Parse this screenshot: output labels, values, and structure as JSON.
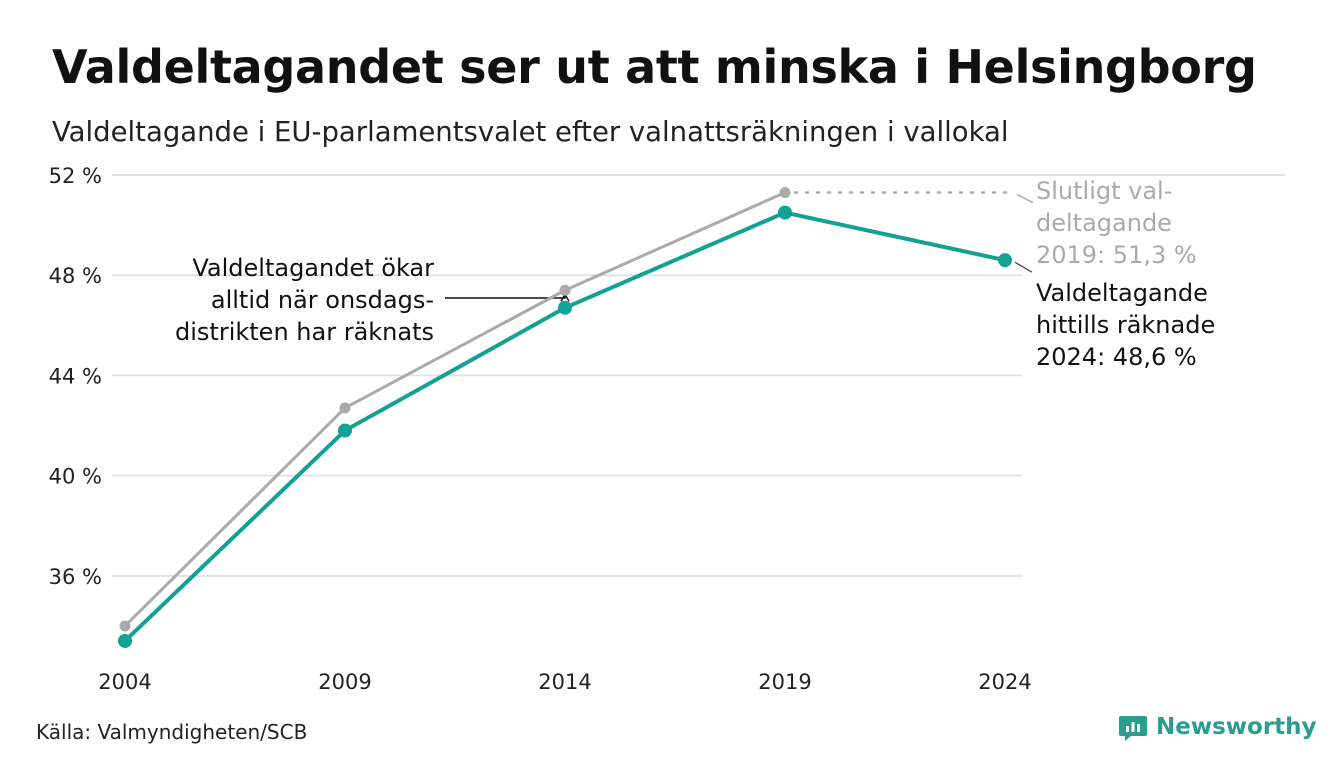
{
  "title": "Valdeltagandet ser ut att minska i Helsingborg",
  "subtitle": "Valdeltagande i EU-parlamentsvalet efter valnattsräkningen i vallokal",
  "source": "Källa: Valmyndigheten/SCB",
  "brand": "Newsworthy",
  "annotations": {
    "left": [
      "Valdeltagandet ökar",
      "alltid när onsdags-",
      "distrikten har räknats"
    ],
    "final_2019": [
      "Slutligt val-",
      "deltagande",
      "2019: 51,3 %"
    ],
    "counted_2024": [
      "Valdeltagande",
      "hittills räknade",
      "2024: 48,6 %"
    ]
  },
  "colors": {
    "teal": "#13a095",
    "grey": "#aaaaaa",
    "grid": "#e3e3e3",
    "text": "#111111"
  },
  "chart_data": {
    "type": "line",
    "x": [
      2004,
      2009,
      2014,
      2019,
      2024
    ],
    "x_tick_labels": [
      "2004",
      "2009",
      "2014",
      "2019",
      "2024"
    ],
    "y_ticks": [
      36,
      40,
      44,
      48,
      52
    ],
    "y_tick_labels": [
      "36 %",
      "40 %",
      "44 %",
      "48 %",
      "52 %"
    ],
    "ylim": [
      33,
      52
    ],
    "grid": true,
    "series": [
      {
        "key": "final",
        "color": "#aaaaaa",
        "values": [
          34.0,
          42.7,
          47.4,
          51.3,
          null
        ]
      },
      {
        "key": "election_night",
        "color": "#13a095",
        "values": [
          33.4,
          41.8,
          46.7,
          50.5,
          48.6
        ]
      }
    ]
  }
}
